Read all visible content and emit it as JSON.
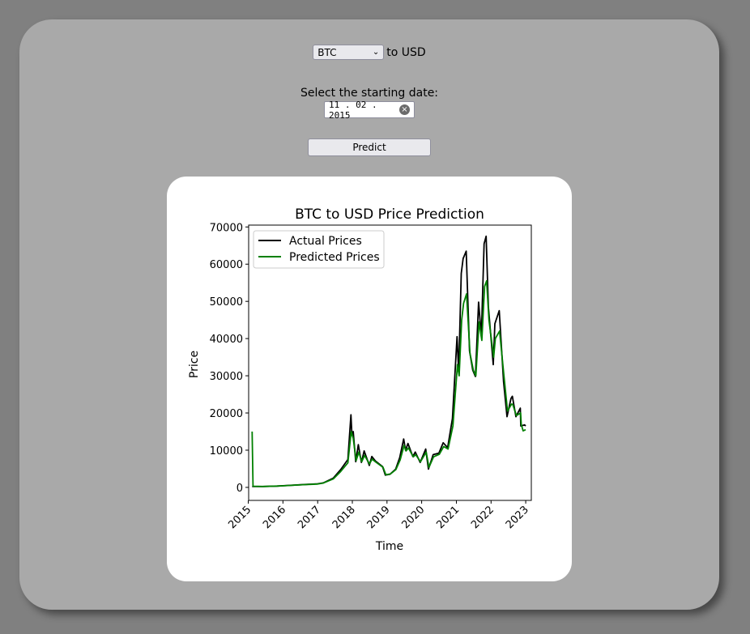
{
  "form": {
    "currency_selected": "BTC",
    "currency_suffix": "to USD",
    "date_label": "Select the starting date:",
    "date_value": "11 . 02 . 2015",
    "predict_label": "Predict"
  },
  "icons": {
    "select": "chevron-down-icon",
    "clear": "clear-icon"
  },
  "colors": {
    "actual": "#000000",
    "predicted": "#008000",
    "panel": "#a9a9a9",
    "page": "#808080"
  },
  "chart_data": {
    "type": "line",
    "title": "BTC to USD Price Prediction",
    "xlabel": "Time",
    "ylabel": "Price",
    "xlim": [
      "2015-01-05",
      "2023-03-01"
    ],
    "ylim": [
      -3500,
      70500
    ],
    "xticks": [
      "2015",
      "2016",
      "2017",
      "2018",
      "2019",
      "2020",
      "2021",
      "2022",
      "2023"
    ],
    "yticks": [
      "0",
      "10000",
      "20000",
      "30000",
      "40000",
      "50000",
      "60000",
      "70000"
    ],
    "legend": "upper-left",
    "series": [
      {
        "name": "Actual Prices",
        "color": "#000000",
        "points": [
          [
            "2015-02-11",
            220
          ],
          [
            "2015-06-01",
            230
          ],
          [
            "2015-11-01",
            350
          ],
          [
            "2016-01-01",
            430
          ],
          [
            "2016-06-15",
            680
          ],
          [
            "2016-12-31",
            960
          ],
          [
            "2017-03-01",
            1200
          ],
          [
            "2017-06-15",
            2500
          ],
          [
            "2017-09-01",
            4800
          ],
          [
            "2017-11-15",
            7500
          ],
          [
            "2017-12-17",
            19500
          ],
          [
            "2017-12-28",
            14000
          ],
          [
            "2018-01-10",
            15000
          ],
          [
            "2018-02-06",
            6900
          ],
          [
            "2018-03-05",
            11500
          ],
          [
            "2018-04-06",
            6700
          ],
          [
            "2018-05-05",
            9800
          ],
          [
            "2018-06-29",
            5900
          ],
          [
            "2018-07-25",
            8300
          ],
          [
            "2018-09-01",
            7100
          ],
          [
            "2018-11-15",
            5600
          ],
          [
            "2018-12-15",
            3300
          ],
          [
            "2019-02-01",
            3500
          ],
          [
            "2019-04-02",
            4900
          ],
          [
            "2019-05-15",
            8000
          ],
          [
            "2019-06-26",
            13000
          ],
          [
            "2019-07-15",
            10000
          ],
          [
            "2019-08-10",
            11800
          ],
          [
            "2019-09-30",
            8300
          ],
          [
            "2019-10-26",
            9500
          ],
          [
            "2019-12-17",
            6700
          ],
          [
            "2020-02-13",
            10300
          ],
          [
            "2020-03-13",
            4900
          ],
          [
            "2020-05-01",
            8800
          ],
          [
            "2020-07-01",
            9200
          ],
          [
            "2020-08-15",
            12000
          ],
          [
            "2020-10-01",
            10700
          ],
          [
            "2020-11-20",
            18500
          ],
          [
            "2021-01-08",
            40500
          ],
          [
            "2021-01-25",
            31000
          ],
          [
            "2021-02-21",
            57500
          ],
          [
            "2021-03-13",
            61500
          ],
          [
            "2021-04-14",
            63500
          ],
          [
            "2021-05-19",
            36700
          ],
          [
            "2021-06-22",
            31500
          ],
          [
            "2021-07-20",
            29800
          ],
          [
            "2021-08-23",
            49800
          ],
          [
            "2021-09-21",
            40600
          ],
          [
            "2021-10-20",
            65500
          ],
          [
            "2021-11-10",
            67500
          ],
          [
            "2021-12-04",
            48500
          ],
          [
            "2022-01-24",
            33000
          ],
          [
            "2022-02-10",
            44000
          ],
          [
            "2022-03-28",
            47500
          ],
          [
            "2022-05-12",
            28500
          ],
          [
            "2022-06-18",
            19000
          ],
          [
            "2022-07-30",
            23900
          ],
          [
            "2022-08-13",
            24500
          ],
          [
            "2022-09-20",
            19000
          ],
          [
            "2022-11-05",
            21300
          ],
          [
            "2022-11-10",
            16500
          ],
          [
            "2022-12-20",
            16800
          ],
          [
            "2022-12-31",
            16500
          ]
        ]
      },
      {
        "name": "Predicted Prices",
        "color": "#008000",
        "points": [
          [
            "2015-02-11",
            15000
          ],
          [
            "2015-02-20",
            300
          ],
          [
            "2015-06-01",
            250
          ],
          [
            "2015-11-01",
            360
          ],
          [
            "2016-01-01",
            420
          ],
          [
            "2016-06-15",
            650
          ],
          [
            "2016-12-31",
            900
          ],
          [
            "2017-03-01",
            1150
          ],
          [
            "2017-06-15",
            2300
          ],
          [
            "2017-09-01",
            4300
          ],
          [
            "2017-11-15",
            6600
          ],
          [
            "2017-12-20",
            15000
          ],
          [
            "2018-01-10",
            13200
          ],
          [
            "2018-02-10",
            7200
          ],
          [
            "2018-03-10",
            9500
          ],
          [
            "2018-04-10",
            6900
          ],
          [
            "2018-05-10",
            8600
          ],
          [
            "2018-07-01",
            6300
          ],
          [
            "2018-07-28",
            7600
          ],
          [
            "2018-09-05",
            6800
          ],
          [
            "2018-11-20",
            5400
          ],
          [
            "2018-12-20",
            3400
          ],
          [
            "2019-02-05",
            3600
          ],
          [
            "2019-04-05",
            4800
          ],
          [
            "2019-05-20",
            7400
          ],
          [
            "2019-06-30",
            11300
          ],
          [
            "2019-07-20",
            9800
          ],
          [
            "2019-08-15",
            10600
          ],
          [
            "2019-10-05",
            8200
          ],
          [
            "2019-10-30",
            8800
          ],
          [
            "2019-12-20",
            6900
          ],
          [
            "2020-02-18",
            9500
          ],
          [
            "2020-03-18",
            5400
          ],
          [
            "2020-05-05",
            8200
          ],
          [
            "2020-07-05",
            8900
          ],
          [
            "2020-08-20",
            11000
          ],
          [
            "2020-10-05",
            10300
          ],
          [
            "2020-11-25",
            16500
          ],
          [
            "2021-01-12",
            33000
          ],
          [
            "2021-01-30",
            30000
          ],
          [
            "2021-02-25",
            45000
          ],
          [
            "2021-03-18",
            49500
          ],
          [
            "2021-04-18",
            52000
          ],
          [
            "2021-05-24",
            36000
          ],
          [
            "2021-06-28",
            31500
          ],
          [
            "2021-07-25",
            30000
          ],
          [
            "2021-08-28",
            44500
          ],
          [
            "2021-09-26",
            39500
          ],
          [
            "2021-10-25",
            54000
          ],
          [
            "2021-11-15",
            55500
          ],
          [
            "2021-12-10",
            45000
          ],
          [
            "2022-01-28",
            35000
          ],
          [
            "2022-02-15",
            40000
          ],
          [
            "2022-04-01",
            42000
          ],
          [
            "2022-05-17",
            30000
          ],
          [
            "2022-06-23",
            20500
          ],
          [
            "2022-08-05",
            22400
          ],
          [
            "2022-08-18",
            22300
          ],
          [
            "2022-09-25",
            19300
          ],
          [
            "2022-11-08",
            20000
          ],
          [
            "2022-11-15",
            16900
          ],
          [
            "2022-12-05",
            15200
          ],
          [
            "2022-12-31",
            15500
          ]
        ]
      }
    ]
  }
}
